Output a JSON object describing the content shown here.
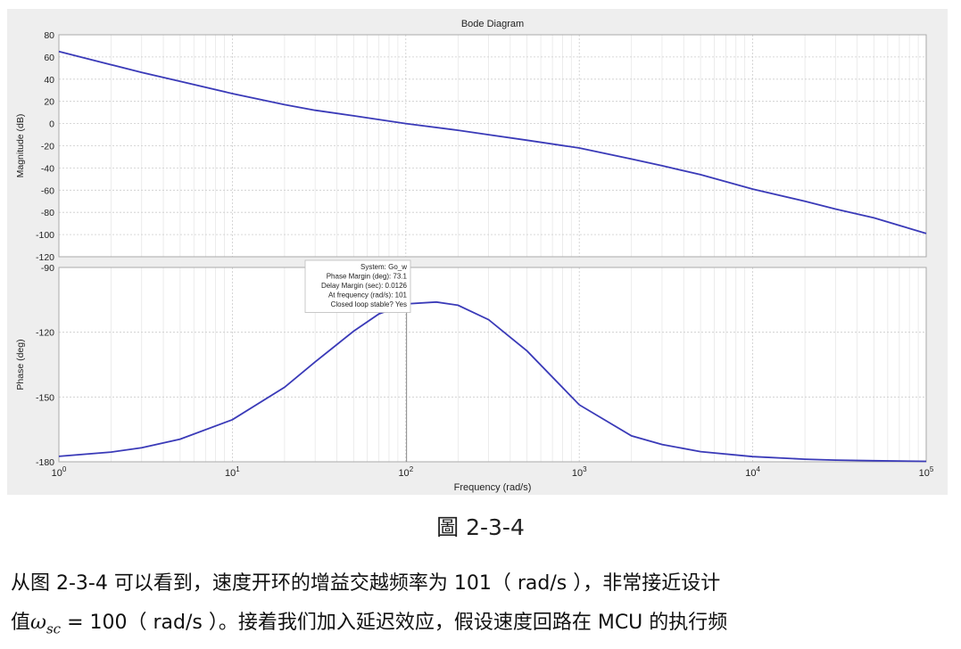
{
  "chart_data": {
    "title": "Bode Diagram",
    "type": "line",
    "xlabel": "Frequency  (rad/s)",
    "xscale": "log",
    "xlim": [
      1,
      100000
    ],
    "xticks": [
      {
        "value": 1,
        "base": "10",
        "exp": "0"
      },
      {
        "value": 10,
        "base": "10",
        "exp": "1"
      },
      {
        "value": 100,
        "base": "10",
        "exp": "2"
      },
      {
        "value": 1000,
        "base": "10",
        "exp": "3"
      },
      {
        "value": 10000,
        "base": "10",
        "exp": "4"
      },
      {
        "value": 100000,
        "base": "10",
        "exp": "5"
      }
    ],
    "grid": true,
    "subplots": [
      {
        "name": "magnitude",
        "ylabel": "Magnitude (dB)",
        "ylim": [
          -120,
          80
        ],
        "yticks": [
          80,
          60,
          40,
          20,
          0,
          -20,
          -40,
          -60,
          -80,
          -100,
          -120
        ],
        "series": [
          {
            "x": [
              1,
              2,
              3,
              5,
              10,
              20,
              30,
              50,
              100,
              200,
              300,
              500,
              1000,
              2000,
              3000,
              5000,
              10000,
              20000,
              30000,
              50000,
              100000
            ],
            "y": [
              65,
              53,
              46,
              38,
              27,
              17,
              12,
              7,
              0,
              -6,
              -10,
              -15,
              -22,
              -32,
              -38,
              -46,
              -59,
              -70,
              -77,
              -85,
              -99
            ]
          }
        ]
      },
      {
        "name": "phase",
        "ylabel": "Phase (deg)",
        "ylim": [
          -180,
          -90
        ],
        "yticks": [
          -90,
          -120,
          -150,
          -180
        ],
        "series": [
          {
            "x": [
              1,
              2,
              3,
              5,
              10,
              20,
              30,
              50,
              70,
              101,
              150,
              200,
              300,
              500,
              1000,
              2000,
              3000,
              5000,
              10000,
              20000,
              30000,
              50000,
              100000
            ],
            "y": [
              -177.5,
              -175.5,
              -173.5,
              -169.5,
              -160.5,
              -145.5,
              -133.7,
              -119.5,
              -111.5,
              -106.9,
              -106.0,
              -107.5,
              -114.2,
              -128.7,
              -153.6,
              -168.0,
              -172.0,
              -175.3,
              -177.6,
              -178.8,
              -179.2,
              -179.5,
              -179.8
            ]
          }
        ]
      }
    ],
    "datatip": {
      "frequency": 101,
      "phase": -106.9,
      "lines": [
        "System: Go_w",
        "Phase Margin (deg): 73.1",
        "Delay Margin (sec): 0.0126",
        "At frequency (rad/s): 101",
        "Closed loop stable? Yes"
      ]
    },
    "colors": {
      "line": "#3a3ab8",
      "panel": "#eeeeee",
      "plot_bg": "#ffffff"
    }
  },
  "caption": "圖 2-3-4",
  "paragraph": {
    "line1": "从图 2-3-4 可以看到，速度开环的增益交越频率为 101（ rad/s ），非常接近设计",
    "line2_prefix": "值",
    "omega": "ω",
    "omega_sub": "sc",
    "line2_suffix": " = 100（ rad/s ）。接着我们加入延迟效应，假设速度回路在 MCU 的执行频"
  }
}
